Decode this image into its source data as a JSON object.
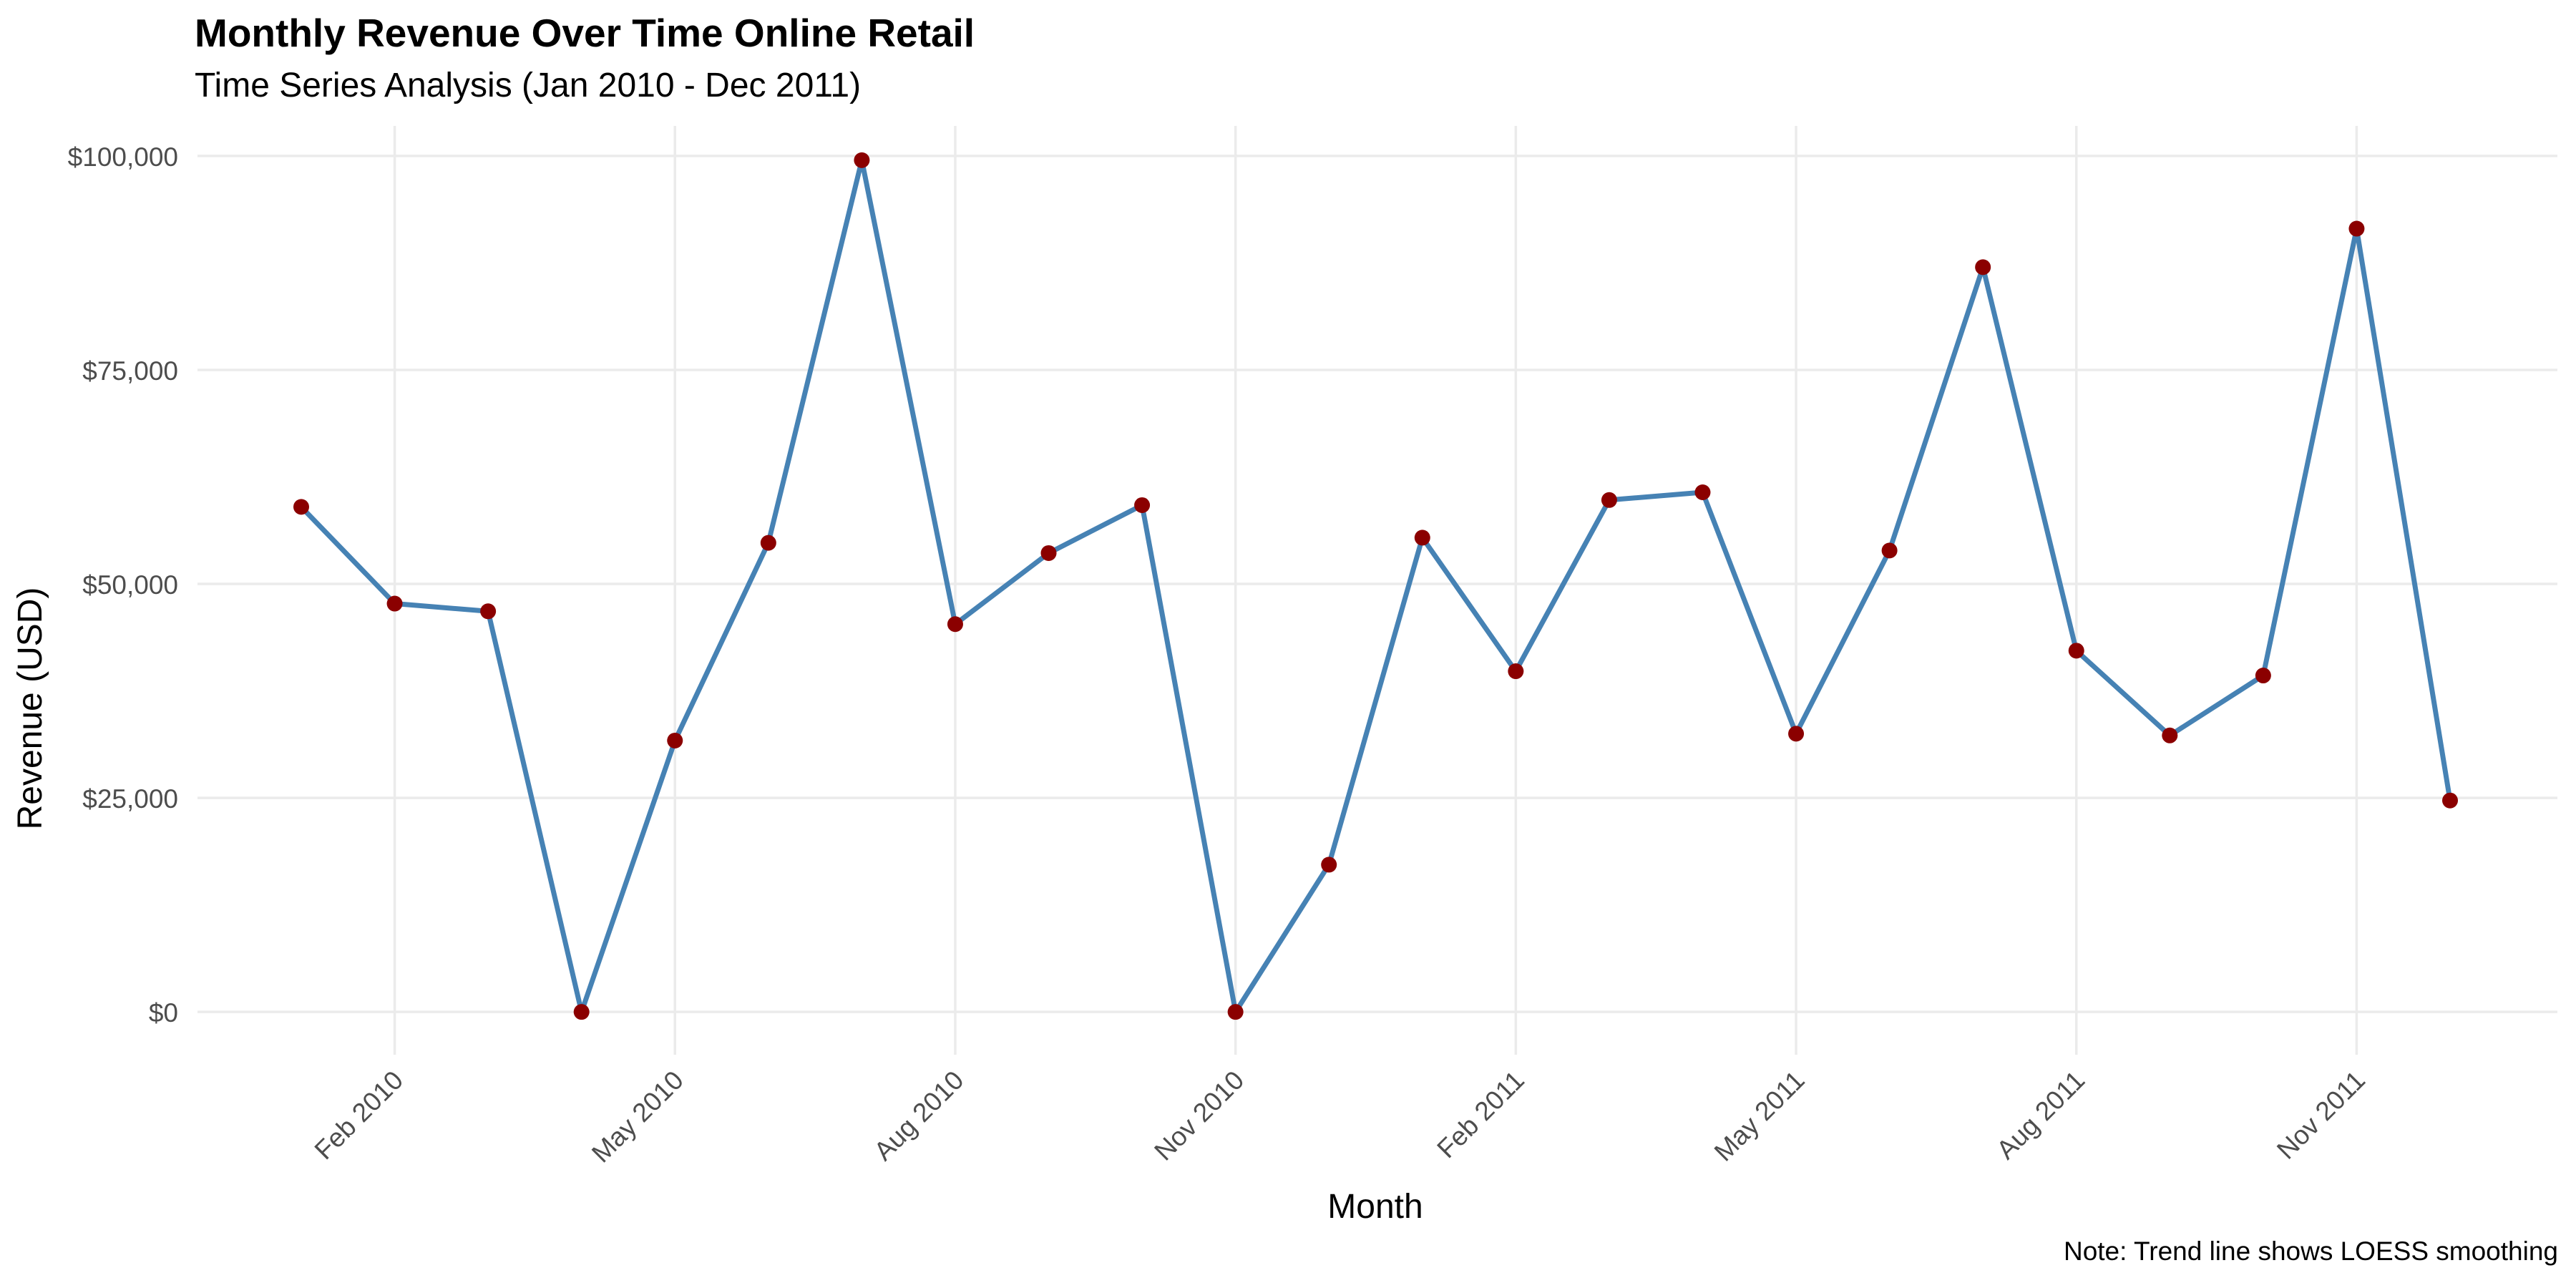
{
  "chart_data": {
    "type": "line",
    "title": "Monthly Revenue Over Time Online Retail",
    "subtitle": "Time Series Analysis (Jan 2010 - Dec 2011)",
    "caption": "Note: Trend line shows LOESS smoothing",
    "xlabel": "Month",
    "ylabel": "Revenue (USD)",
    "x": [
      "2010-01",
      "2010-02",
      "2010-03",
      "2010-04",
      "2010-05",
      "2010-06",
      "2010-07",
      "2010-08",
      "2010-09",
      "2010-10",
      "2010-11",
      "2010-12",
      "2011-01",
      "2011-02",
      "2011-03",
      "2011-04",
      "2011-05",
      "2011-06",
      "2011-07",
      "2011-08",
      "2011-09",
      "2011-10",
      "2011-11",
      "2011-12"
    ],
    "series": [
      {
        "values": [
          59000,
          47700,
          46800,
          0,
          31700,
          54800,
          99500,
          45300,
          53600,
          59200,
          0,
          17200,
          55400,
          39800,
          59800,
          60700,
          32500,
          53900,
          87000,
          42200,
          32300,
          39300,
          91500,
          24700
        ]
      }
    ],
    "ylim": [
      -5000,
      103500
    ],
    "y_ticks": [
      0,
      25000,
      50000,
      75000,
      100000
    ],
    "y_tick_labels": [
      "$0",
      "$25,000",
      "$50,000",
      "$75,000",
      "$100,000"
    ],
    "x_ticks": [
      "2010-02",
      "2010-05",
      "2010-08",
      "2010-11",
      "2011-02",
      "2011-05",
      "2011-08",
      "2011-11"
    ],
    "x_tick_labels": [
      "Feb 2010",
      "May 2010",
      "Aug 2010",
      "Nov 2010",
      "Feb 2011",
      "May 2011",
      "Aug 2011",
      "Nov 2011"
    ],
    "grid": true,
    "colors": {
      "line": "#4682B4",
      "points": "#8B0000",
      "grid": "#EBEBEB",
      "axis_text": "#4D4D4D"
    }
  }
}
